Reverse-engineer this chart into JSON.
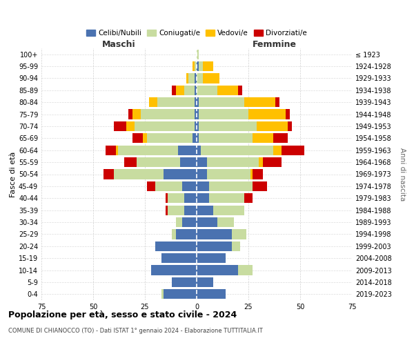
{
  "age_groups": [
    "0-4",
    "5-9",
    "10-14",
    "15-19",
    "20-24",
    "25-29",
    "30-34",
    "35-39",
    "40-44",
    "45-49",
    "50-54",
    "55-59",
    "60-64",
    "65-69",
    "70-74",
    "75-79",
    "80-84",
    "85-89",
    "90-94",
    "95-99",
    "100+"
  ],
  "birth_years": [
    "2019-2023",
    "2014-2018",
    "2009-2013",
    "2004-2008",
    "1999-2003",
    "1994-1998",
    "1989-1993",
    "1984-1988",
    "1979-1983",
    "1974-1978",
    "1969-1973",
    "1964-1968",
    "1959-1963",
    "1954-1958",
    "1949-1953",
    "1944-1948",
    "1939-1943",
    "1934-1938",
    "1929-1933",
    "1924-1928",
    "≤ 1923"
  ],
  "colors": {
    "celibi": "#4a72b0",
    "coniugati": "#c8dca0",
    "vedovi": "#ffc000",
    "divorziati": "#cc0000"
  },
  "maschi": {
    "celibi": [
      16,
      12,
      22,
      17,
      20,
      10,
      7,
      6,
      6,
      7,
      16,
      8,
      9,
      2,
      1,
      1,
      1,
      1,
      1,
      0,
      0
    ],
    "coniugati": [
      1,
      0,
      0,
      0,
      0,
      2,
      3,
      8,
      8,
      13,
      24,
      21,
      29,
      22,
      29,
      26,
      18,
      5,
      3,
      1,
      0
    ],
    "vedovi": [
      0,
      0,
      0,
      0,
      0,
      0,
      0,
      0,
      0,
      0,
      0,
      0,
      1,
      2,
      4,
      4,
      4,
      4,
      1,
      1,
      0
    ],
    "divorziati": [
      0,
      0,
      0,
      0,
      0,
      0,
      0,
      1,
      1,
      4,
      5,
      6,
      5,
      5,
      6,
      2,
      0,
      2,
      0,
      0,
      0
    ]
  },
  "femmine": {
    "celibi": [
      14,
      8,
      20,
      14,
      17,
      17,
      10,
      8,
      6,
      6,
      5,
      5,
      2,
      1,
      1,
      1,
      1,
      0,
      0,
      1,
      0
    ],
    "coniugati": [
      0,
      0,
      7,
      0,
      4,
      7,
      8,
      15,
      17,
      21,
      21,
      25,
      35,
      26,
      28,
      24,
      22,
      10,
      3,
      2,
      1
    ],
    "vedovi": [
      0,
      0,
      0,
      0,
      0,
      0,
      0,
      0,
      0,
      0,
      1,
      2,
      4,
      10,
      15,
      18,
      15,
      10,
      8,
      5,
      0
    ],
    "divorziati": [
      0,
      0,
      0,
      0,
      0,
      0,
      0,
      0,
      4,
      7,
      5,
      9,
      11,
      7,
      2,
      2,
      2,
      2,
      0,
      0,
      0
    ]
  },
  "title": "Popolazione per età, sesso e stato civile - 2024",
  "subtitle": "COMUNE DI CHIANOCCO (TO) - Dati ISTAT 1° gennaio 2024 - Elaborazione TUTTITALIA.IT",
  "xlabel_left": "Maschi",
  "xlabel_right": "Femmine",
  "ylabel_left": "Fasce di età",
  "ylabel_right": "Anni di nascita",
  "xlim": 75,
  "legend_labels": [
    "Celibi/Nubili",
    "Coniugati/e",
    "Vedovi/e",
    "Divorziati/e"
  ],
  "bg_color": "#ffffff",
  "grid_color": "#cccccc"
}
